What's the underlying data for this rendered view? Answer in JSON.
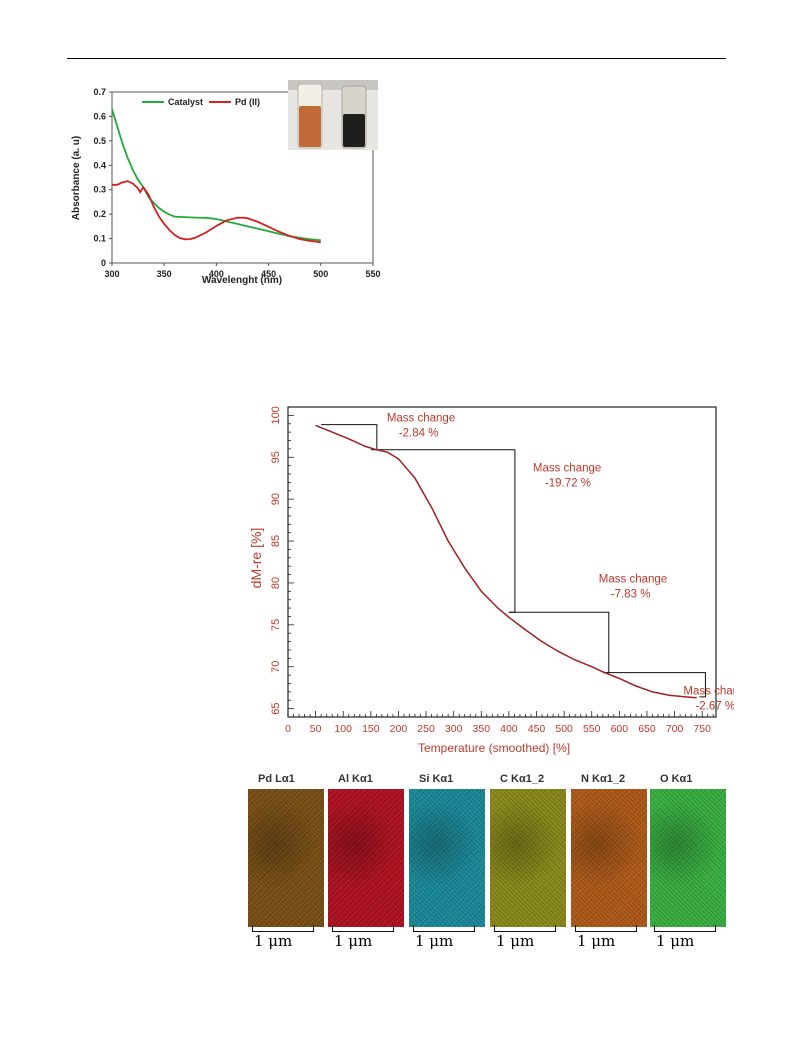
{
  "chart_data": [
    {
      "type": "line",
      "title": "",
      "xlabel": "Wavelenght (nm)",
      "ylabel": "Absorbance (a. u)",
      "xlim": [
        300,
        550
      ],
      "ylim": [
        0,
        0.7
      ],
      "x_ticks": [
        "300",
        "350",
        "400",
        "450",
        "500",
        "550"
      ],
      "y_ticks": [
        "0",
        "0.1",
        "0.2",
        "0.3",
        "0.4",
        "0.5",
        "0.6",
        "0.7"
      ],
      "legend_position": "top",
      "grid": false,
      "series": [
        {
          "name": "Catalyst",
          "color": "#22aa3a",
          "x": [
            300,
            305,
            310,
            315,
            320,
            325,
            330,
            335,
            340,
            345,
            350,
            355,
            360,
            370,
            380,
            390,
            400,
            410,
            420,
            430,
            440,
            450,
            460,
            470,
            480,
            490,
            500
          ],
          "y": [
            0.63,
            0.56,
            0.49,
            0.43,
            0.38,
            0.34,
            0.31,
            0.27,
            0.245,
            0.225,
            0.21,
            0.198,
            0.19,
            0.188,
            0.186,
            0.185,
            0.18,
            0.17,
            0.16,
            0.15,
            0.14,
            0.13,
            0.12,
            0.11,
            0.103,
            0.097,
            0.093
          ]
        },
        {
          "name": "Pd (II)",
          "color": "#d42020",
          "x": [
            300,
            305,
            310,
            315,
            320,
            325,
            327,
            330,
            335,
            340,
            345,
            350,
            355,
            360,
            365,
            370,
            375,
            380,
            390,
            400,
            410,
            420,
            425,
            430,
            440,
            450,
            460,
            470,
            480,
            490,
            500
          ],
          "y": [
            0.32,
            0.32,
            0.33,
            0.335,
            0.325,
            0.305,
            0.29,
            0.31,
            0.28,
            0.23,
            0.19,
            0.16,
            0.135,
            0.115,
            0.102,
            0.097,
            0.098,
            0.104,
            0.125,
            0.152,
            0.175,
            0.185,
            0.186,
            0.183,
            0.168,
            0.148,
            0.128,
            0.111,
            0.098,
            0.09,
            0.085
          ]
        }
      ],
      "inset_photo": {
        "left_vial_color": "#c06a35",
        "right_vial_color": "#1e1e1c"
      }
    },
    {
      "type": "line",
      "title": "",
      "xlabel": "Temperature (smoothed) [%]",
      "ylabel": "dM-re [%]",
      "xlim": [
        0,
        775
      ],
      "ylim": [
        64,
        101
      ],
      "x_ticks": [
        "0",
        "50",
        "100",
        "150",
        "200",
        "250",
        "300",
        "350",
        "400",
        "450",
        "500",
        "550",
        "600",
        "650",
        "700",
        "750"
      ],
      "y_ticks": [
        "65",
        "70",
        "75",
        "80",
        "85",
        "90",
        "95",
        "100"
      ],
      "grid": false,
      "axis_color": "#c0392b",
      "series": [
        {
          "color": "#a02020",
          "x": [
            50,
            80,
            110,
            140,
            160,
            180,
            200,
            230,
            260,
            290,
            320,
            350,
            380,
            400,
            430,
            460,
            490,
            520,
            550,
            570,
            600,
            630,
            660,
            690,
            720,
            740
          ],
          "y": [
            98.8,
            98.0,
            97.2,
            96.3,
            95.9,
            95.6,
            94.8,
            92.5,
            89.0,
            85.0,
            81.8,
            79.0,
            77.0,
            75.9,
            74.4,
            73.0,
            71.8,
            70.8,
            70.0,
            69.4,
            68.6,
            67.7,
            67.0,
            66.6,
            66.4,
            66.3
          ]
        }
      ],
      "annotations": [
        {
          "text1": "Mass change",
          "text2": "-2.84 %",
          "x1": 60,
          "x2": 150,
          "y_top": 98.9,
          "y_bottom": 95.9
        },
        {
          "text1": "Mass change",
          "text2": "-19.72 %",
          "x1": 160,
          "x2": 400,
          "y_top": 95.9,
          "y_bottom": 76.5
        },
        {
          "text1": "Mass change",
          "text2": "-7.83 %",
          "x1": 400,
          "x2": 570,
          "y_top": 76.5,
          "y_bottom": 69.3
        },
        {
          "text1": "Mass change",
          "text2": "-2.67 %",
          "x1": 570,
          "x2": 745,
          "y_top": 69.3,
          "y_bottom": 66.4
        }
      ]
    }
  ],
  "edx_maps": [
    {
      "label": "Pd Lα1",
      "color": "#7a4f14",
      "scale": "1 μm"
    },
    {
      "label": "Al Kα1",
      "color": "#b01020",
      "scale": "1 μm"
    },
    {
      "label": "Si Kα1",
      "color": "#1a8a9a",
      "scale": "1 μm"
    },
    {
      "label": "C Kα1_2",
      "color": "#8a8a1a",
      "scale": "1 μm"
    },
    {
      "label": "N Kα1_2",
      "color": "#b05a18",
      "scale": "1 μm"
    },
    {
      "label": "O Kα1",
      "color": "#38b040",
      "scale": "1 μm"
    }
  ]
}
